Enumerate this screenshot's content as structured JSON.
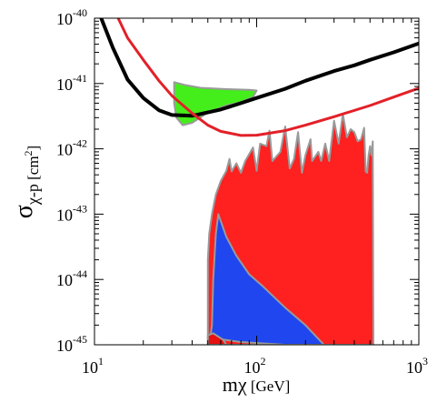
{
  "chart_data": {
    "type": "area",
    "x_scale": "log",
    "y_scale": "log",
    "xlim": [
      10,
      1000
    ],
    "ylim": [
      1e-45,
      1e-40
    ],
    "grid": false,
    "xlabel": {
      "symbol": "m",
      "subscript": "χ",
      "unit": " [GeV]"
    },
    "ylabel": {
      "symbol": "σ",
      "subscript": "χ-p",
      "unit": " [cm",
      "unit_sup": "2",
      "unit_close": "]"
    },
    "x_ticks": [
      {
        "value": 10,
        "base": "10",
        "exp": "1"
      },
      {
        "value": 100,
        "base": "10",
        "exp": "2"
      },
      {
        "value": 1000,
        "base": "10",
        "exp": "3"
      }
    ],
    "y_ticks": [
      {
        "value": 1e-40,
        "base": "10",
        "exp": "-40"
      },
      {
        "value": 1e-41,
        "base": "10",
        "exp": "-41"
      },
      {
        "value": 1e-42,
        "base": "10",
        "exp": "-42"
      },
      {
        "value": 1e-43,
        "base": "10",
        "exp": "-43"
      },
      {
        "value": 1e-44,
        "base": "10",
        "exp": "-44"
      },
      {
        "value": 1e-45,
        "base": "10",
        "exp": "-45"
      }
    ],
    "series": [
      {
        "kind": "region",
        "color": "#ff2020",
        "edge": "#9a9a9a",
        "points": [
          [
            50,
            1e-45
          ],
          [
            50,
            2e-44
          ],
          [
            51,
            5e-44
          ],
          [
            53,
            1e-43
          ],
          [
            56,
            2e-43
          ],
          [
            60,
            3.2e-43
          ],
          [
            65,
            4.6e-43
          ],
          [
            68,
            7e-43
          ],
          [
            70,
            4.5e-43
          ],
          [
            75,
            6e-43
          ],
          [
            80,
            4.3e-43
          ],
          [
            85,
            6.5e-43
          ],
          [
            95,
            1.05e-42
          ],
          [
            100,
            4.6e-43
          ],
          [
            105,
            1.2e-42
          ],
          [
            115,
            1.1e-42
          ],
          [
            120,
            1.9e-42
          ],
          [
            125,
            6.5e-43
          ],
          [
            140,
            9e-43
          ],
          [
            150,
            2.2e-42
          ],
          [
            160,
            5e-43
          ],
          [
            170,
            7e-43
          ],
          [
            180,
            1.8e-42
          ],
          [
            190,
            4.3e-43
          ],
          [
            200,
            8e-43
          ],
          [
            215,
            1.4e-42
          ],
          [
            220,
            6.5e-43
          ],
          [
            240,
            9e-43
          ],
          [
            250,
            6.5e-43
          ],
          [
            265,
            1.2e-42
          ],
          [
            280,
            6.5e-43
          ],
          [
            300,
            2.7e-42
          ],
          [
            320,
            1.2e-42
          ],
          [
            340,
            3.4e-42
          ],
          [
            360,
            1.5e-42
          ],
          [
            380,
            2e-42
          ],
          [
            400,
            1.8e-42
          ],
          [
            420,
            1.3e-42
          ],
          [
            440,
            1.4e-42
          ],
          [
            460,
            2.1e-42
          ],
          [
            470,
            4.5e-43
          ],
          [
            480,
            4.3e-43
          ],
          [
            490,
            8e-43
          ],
          [
            500,
            1.1e-42
          ],
          [
            510,
            8e-43
          ],
          [
            520,
            1.3e-42
          ],
          [
            525,
            1e-45
          ]
        ]
      },
      {
        "kind": "region",
        "color": "#2046f0",
        "edge": "#9a9a9a",
        "points": [
          [
            58,
            1e-43
          ],
          [
            56,
            5e-44
          ],
          [
            54,
            1e-44
          ],
          [
            53,
            2e-45
          ],
          [
            52,
            1.4e-45
          ],
          [
            62,
            1.2e-45
          ],
          [
            80,
            1.1e-45
          ],
          [
            150,
            1e-45
          ],
          [
            260,
            1e-45
          ],
          [
            200,
            2e-45
          ],
          [
            150,
            3.7e-45
          ],
          [
            110,
            7.7e-45
          ],
          [
            90,
            1.2e-44
          ],
          [
            75,
            2.3e-44
          ],
          [
            65,
            4.5e-44
          ]
        ]
      },
      {
        "kind": "region",
        "color": "#e81010",
        "edge": "#9a9a9a",
        "points": [
          [
            50,
            1e-45
          ],
          [
            50,
            1.4e-45
          ],
          [
            54,
            1.5e-45
          ],
          [
            62,
            1.2e-45
          ],
          [
            65,
            1e-45
          ]
        ]
      },
      {
        "kind": "region",
        "color": "#44ee1a",
        "edge": "#9a9a9a",
        "points": [
          [
            31,
            1.05e-41
          ],
          [
            36,
            9.5e-42
          ],
          [
            45,
            8.6e-42
          ],
          [
            65,
            8.2e-42
          ],
          [
            90,
            8e-42
          ],
          [
            100,
            7.8e-42
          ],
          [
            95,
            6.2e-42
          ],
          [
            80,
            5.2e-42
          ],
          [
            65,
            4.6e-42
          ],
          [
            50,
            3.6e-42
          ],
          [
            40,
            2.5e-42
          ],
          [
            35,
            2.3e-42
          ],
          [
            32,
            3e-42
          ],
          [
            31,
            5e-42
          ]
        ]
      },
      {
        "kind": "line",
        "color": "#000000",
        "width": 4,
        "points": [
          [
            11,
            1e-40
          ],
          [
            13,
            3.5e-41
          ],
          [
            16,
            1.15e-41
          ],
          [
            20,
            6e-42
          ],
          [
            25,
            3.9e-42
          ],
          [
            30,
            3.3e-42
          ],
          [
            40,
            3.2e-42
          ],
          [
            60,
            4e-42
          ],
          [
            80,
            5e-42
          ],
          [
            100,
            6e-42
          ],
          [
            150,
            8.3e-42
          ],
          [
            200,
            1.1e-41
          ],
          [
            300,
            1.55e-41
          ],
          [
            400,
            1.9e-41
          ],
          [
            500,
            2.3e-41
          ],
          [
            700,
            3e-41
          ],
          [
            1000,
            4.1e-41
          ]
        ]
      },
      {
        "kind": "line",
        "color": "#e32028",
        "width": 3,
        "points": [
          [
            14,
            1e-40
          ],
          [
            16,
            5e-41
          ],
          [
            20,
            2.3e-41
          ],
          [
            25,
            1.1e-41
          ],
          [
            30,
            6.5e-42
          ],
          [
            40,
            3.5e-42
          ],
          [
            50,
            2.3e-42
          ],
          [
            60,
            1.85e-42
          ],
          [
            80,
            1.6e-42
          ],
          [
            100,
            1.62e-42
          ],
          [
            150,
            1.9e-42
          ],
          [
            200,
            2.3e-42
          ],
          [
            300,
            3.1e-42
          ],
          [
            500,
            4.6e-42
          ],
          [
            700,
            6.2e-42
          ],
          [
            1000,
            8.5e-42
          ]
        ]
      }
    ]
  }
}
